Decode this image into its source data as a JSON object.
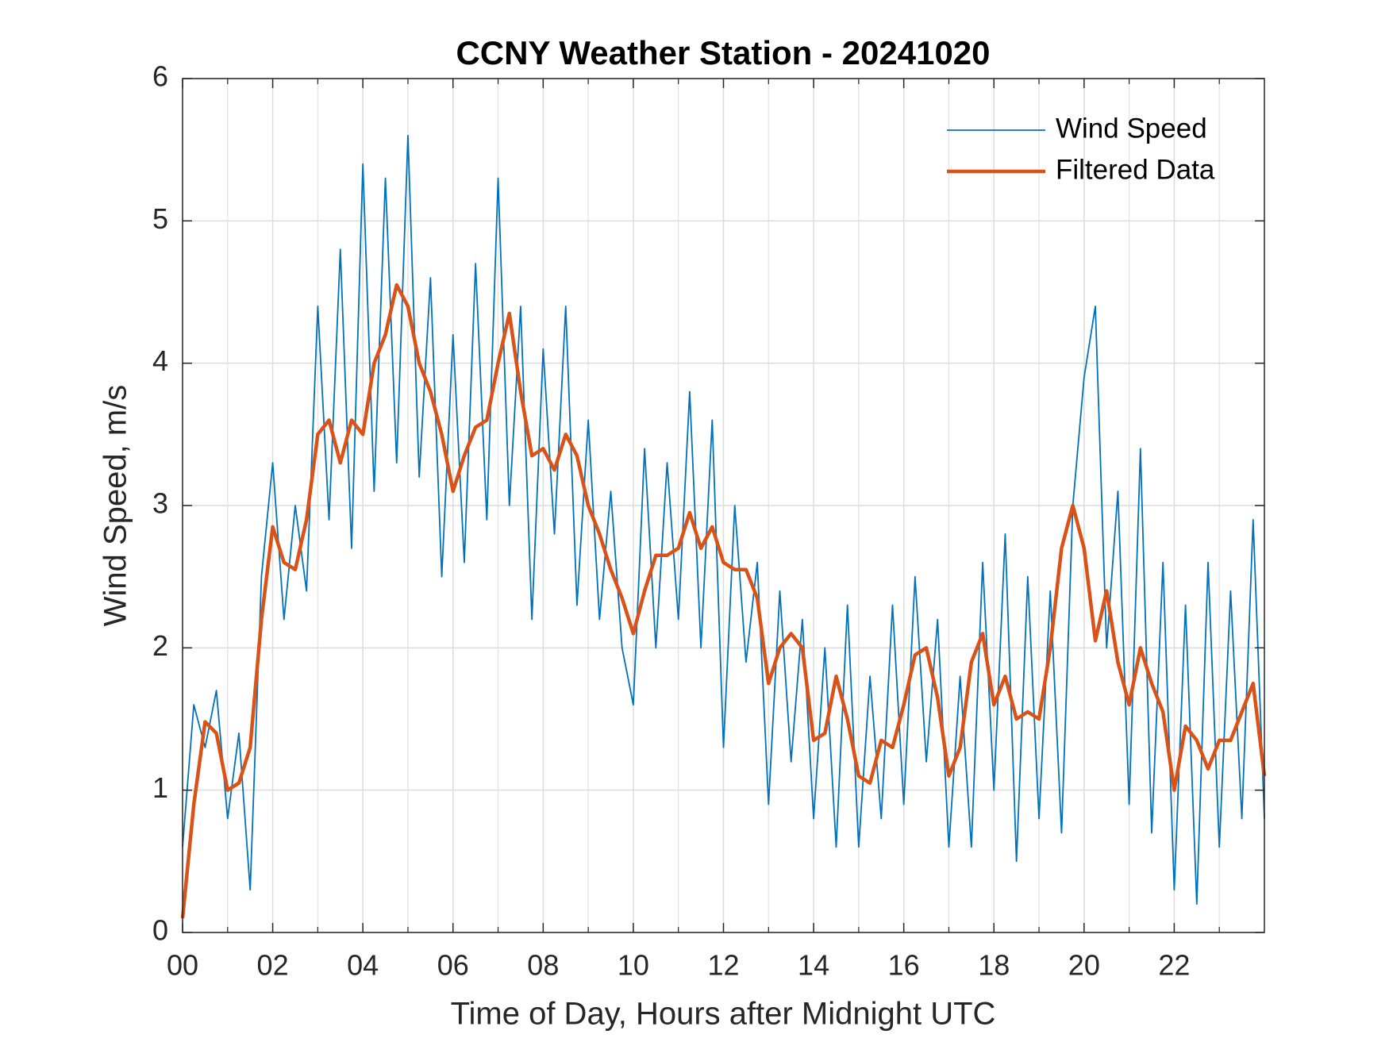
{
  "chart_data": {
    "type": "line",
    "title": "CCNY Weather Station - 20241020",
    "xlabel": "Time of Day, Hours after Midnight UTC",
    "ylabel": "Wind Speed, m/s",
    "x": [
      0,
      0.25,
      0.5,
      0.75,
      1,
      1.25,
      1.5,
      1.75,
      2,
      2.25,
      2.5,
      2.75,
      3,
      3.25,
      3.5,
      3.75,
      4,
      4.25,
      4.5,
      4.75,
      5,
      5.25,
      5.5,
      5.75,
      6,
      6.25,
      6.5,
      6.75,
      7,
      7.25,
      7.5,
      7.75,
      8,
      8.25,
      8.5,
      8.75,
      9,
      9.25,
      9.5,
      9.75,
      10,
      10.25,
      10.5,
      10.75,
      11,
      11.25,
      11.5,
      11.75,
      12,
      12.25,
      12.5,
      12.75,
      13,
      13.25,
      13.5,
      13.75,
      14,
      14.25,
      14.5,
      14.75,
      15,
      15.25,
      15.5,
      15.75,
      16,
      16.25,
      16.5,
      16.75,
      17,
      17.25,
      17.5,
      17.75,
      18,
      18.25,
      18.5,
      18.75,
      19,
      19.25,
      19.5,
      19.75,
      20,
      20.25,
      20.5,
      20.75,
      21,
      21.25,
      21.5,
      21.75,
      22,
      22.25,
      22.5,
      22.75,
      23,
      23.25,
      23.5,
      23.75,
      24
    ],
    "series": [
      {
        "name": "Wind Speed",
        "color": "#0072BD",
        "values": [
          0.6,
          1.6,
          1.3,
          1.7,
          0.8,
          1.4,
          0.3,
          2.5,
          3.3,
          2.2,
          3.0,
          2.4,
          4.4,
          2.9,
          4.8,
          2.7,
          5.4,
          3.1,
          5.3,
          3.3,
          5.6,
          3.2,
          4.6,
          2.5,
          4.2,
          2.6,
          4.7,
          2.9,
          5.3,
          3.0,
          4.4,
          2.2,
          4.1,
          2.8,
          4.4,
          2.3,
          3.6,
          2.2,
          3.1,
          2.0,
          1.6,
          3.4,
          2.0,
          3.3,
          2.2,
          3.8,
          2.0,
          3.6,
          1.3,
          3.0,
          1.9,
          2.6,
          0.9,
          2.4,
          1.2,
          2.2,
          0.8,
          2.0,
          0.6,
          2.3,
          0.6,
          1.8,
          0.8,
          2.3,
          0.9,
          2.5,
          1.2,
          2.2,
          0.6,
          1.8,
          0.6,
          2.6,
          1.0,
          2.8,
          0.5,
          2.5,
          0.8,
          2.4,
          0.7,
          3.0,
          3.9,
          4.4,
          2.0,
          3.1,
          0.9,
          3.4,
          0.7,
          2.6,
          0.3,
          2.3,
          0.2,
          2.6,
          0.6,
          2.4,
          0.8,
          2.9,
          0.8
        ]
      },
      {
        "name": "Filtered Data",
        "color": "#D95319",
        "values": [
          0.1,
          0.9,
          1.48,
          1.4,
          1.0,
          1.05,
          1.3,
          2.2,
          2.85,
          2.6,
          2.55,
          2.9,
          3.5,
          3.6,
          3.3,
          3.6,
          3.5,
          4.0,
          4.2,
          4.55,
          4.4,
          4.0,
          3.8,
          3.5,
          3.1,
          3.35,
          3.55,
          3.6,
          4.0,
          4.35,
          3.8,
          3.35,
          3.4,
          3.25,
          3.5,
          3.35,
          3.0,
          2.8,
          2.55,
          2.35,
          2.1,
          2.4,
          2.65,
          2.65,
          2.7,
          2.95,
          2.7,
          2.85,
          2.6,
          2.55,
          2.55,
          2.35,
          1.75,
          2.0,
          2.1,
          2.0,
          1.35,
          1.4,
          1.8,
          1.5,
          1.1,
          1.05,
          1.35,
          1.3,
          1.6,
          1.95,
          2.0,
          1.65,
          1.1,
          1.3,
          1.9,
          2.1,
          1.6,
          1.8,
          1.5,
          1.55,
          1.5,
          2.0,
          2.7,
          3.0,
          2.7,
          2.05,
          2.4,
          1.9,
          1.6,
          2.0,
          1.75,
          1.55,
          1.0,
          1.45,
          1.35,
          1.15,
          1.35,
          1.35,
          1.55,
          1.75,
          1.1
        ]
      }
    ],
    "xlim": [
      0,
      24
    ],
    "xticks": [
      {
        "value": 0,
        "label": "00"
      },
      {
        "value": 2,
        "label": "02"
      },
      {
        "value": 4,
        "label": "04"
      },
      {
        "value": 6,
        "label": "06"
      },
      {
        "value": 8,
        "label": "08"
      },
      10,
      12,
      14,
      16,
      18,
      20,
      22
    ],
    "xminorticks": [
      1,
      3,
      5,
      7,
      9,
      11,
      13,
      15,
      17,
      19,
      21,
      23
    ],
    "ylim": [
      0,
      6
    ],
    "yticks": [
      0,
      1,
      2,
      3,
      4,
      5,
      6
    ],
    "grid": true,
    "legend": "upper right"
  }
}
